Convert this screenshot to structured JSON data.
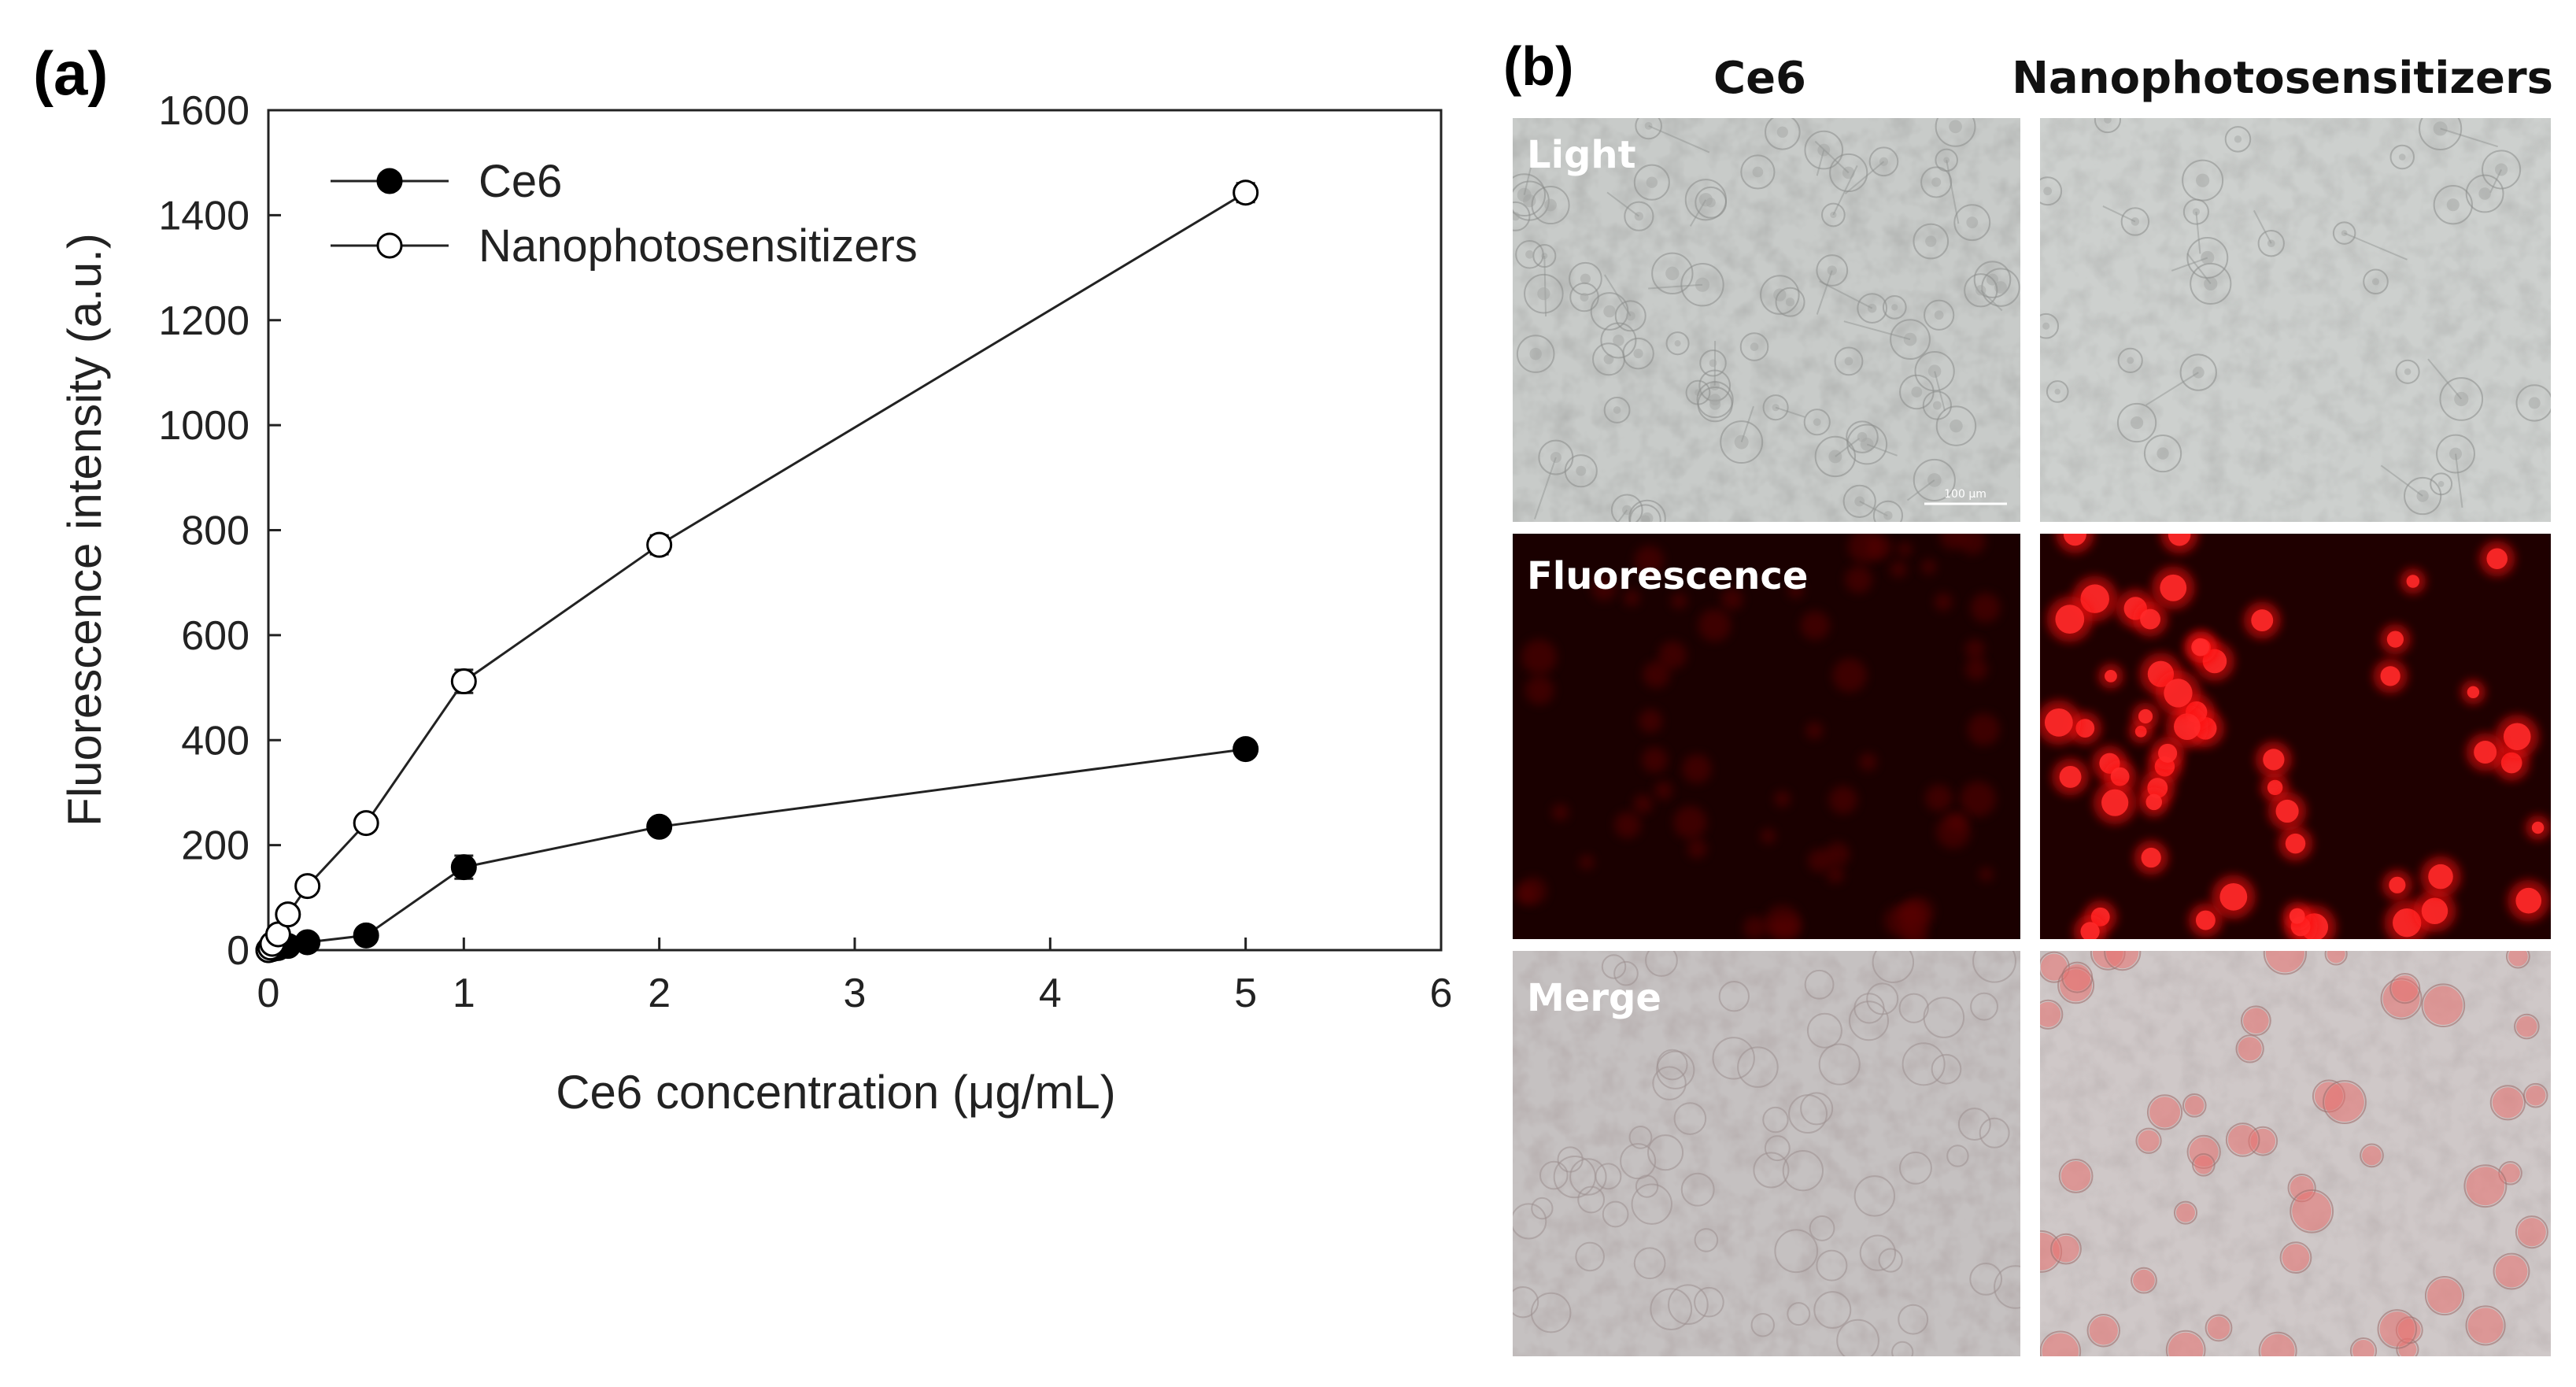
{
  "panel_a_label": "(a)",
  "panel_b_label": "(b)",
  "chart_data": {
    "type": "line",
    "title": "",
    "xlabel": "Ce6 concentration (μg/mL)",
    "ylabel": "Fluorescence intensity (a.u.)",
    "xlim": [
      0,
      6
    ],
    "ylim": [
      0,
      1600
    ],
    "xticks": [
      0,
      1,
      2,
      3,
      4,
      5,
      6
    ],
    "yticks": [
      0,
      200,
      400,
      600,
      800,
      1000,
      1200,
      1400,
      1600
    ],
    "legend_position": "top-left",
    "grid": false,
    "series": [
      {
        "name": "Ce6",
        "marker": "filled-circle",
        "x": [
          0,
          0.01,
          0.02,
          0.05,
          0.1,
          0.2,
          0.5,
          1,
          2,
          5
        ],
        "y": [
          0,
          1,
          2,
          4,
          8,
          15,
          28,
          158,
          235,
          383
        ],
        "error": [
          2,
          2,
          2,
          3,
          3,
          5,
          8,
          22,
          12,
          15
        ]
      },
      {
        "name": "Nanophotosensitizers",
        "marker": "open-circle",
        "x": [
          0,
          0.01,
          0.02,
          0.05,
          0.1,
          0.2,
          0.5,
          1,
          2,
          5
        ],
        "y": [
          0,
          5,
          12,
          30,
          68,
          122,
          242,
          512,
          772,
          1443
        ],
        "error": [
          2,
          3,
          3,
          4,
          6,
          8,
          10,
          22,
          18,
          18
        ]
      }
    ]
  },
  "micrographs": {
    "column_headers": [
      "Ce6",
      "Nanophotosensitizers"
    ],
    "row_labels": [
      "Light",
      "Fluorescence",
      "Merge"
    ],
    "scale_bar_label": "100 μm",
    "colors": {
      "light_bg": "#c9ccca",
      "fluorescence_dark": "#1a0000",
      "fluorescence_signal": "#ff1a1a",
      "merge_bg": "#c6bfbf"
    }
  }
}
